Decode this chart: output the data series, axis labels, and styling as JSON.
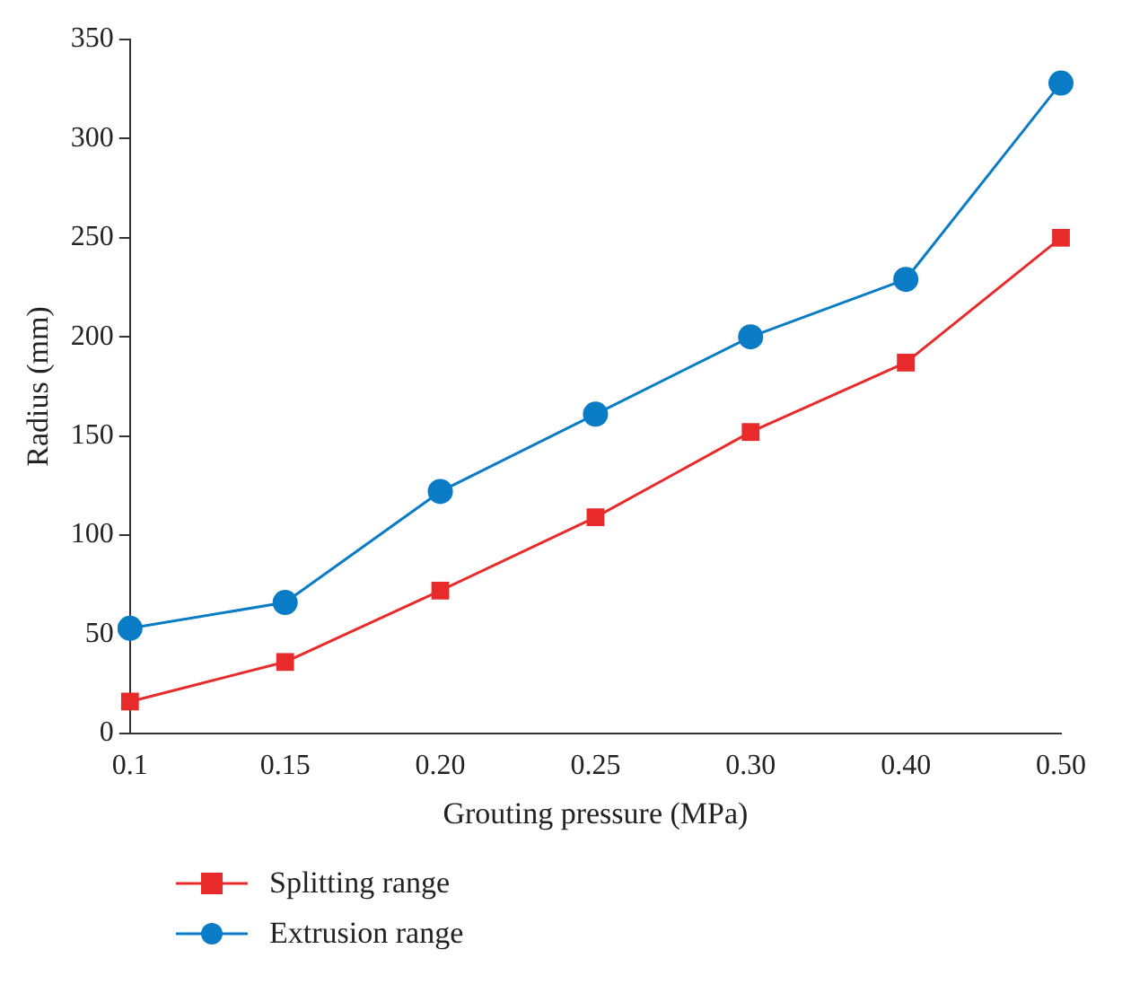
{
  "chart_data": {
    "type": "line",
    "xlabel": "Grouting pressure (MPa)",
    "ylabel": "Radius (mm)",
    "categories": [
      "0.1",
      "0.15",
      "0.20",
      "0.25",
      "0.30",
      "0.40",
      "0.50"
    ],
    "series": [
      {
        "name": "Splitting range",
        "color": "#e82a2a",
        "marker": "square",
        "values": [
          16,
          36,
          72,
          109,
          152,
          187,
          250
        ]
      },
      {
        "name": "Extrusion range",
        "color": "#0a7cc6",
        "marker": "circle",
        "values": [
          53,
          66,
          122,
          161,
          200,
          229,
          328
        ]
      }
    ],
    "ylim": [
      0,
      350
    ],
    "yticks": [
      0,
      50,
      100,
      150,
      200,
      250,
      300,
      350
    ],
    "grid": false,
    "legend": "bottom left"
  }
}
